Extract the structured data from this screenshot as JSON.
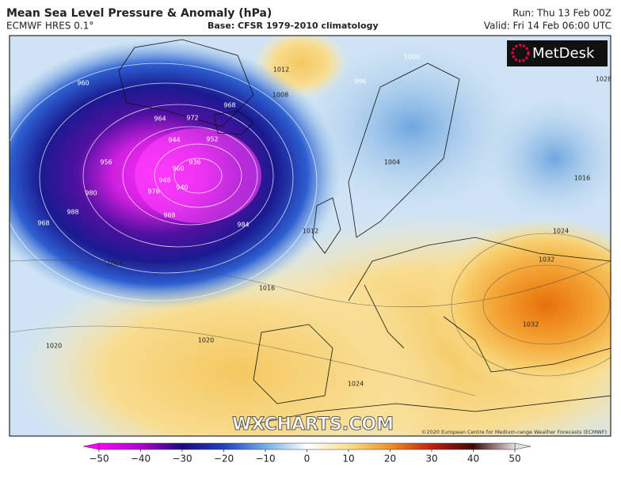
{
  "header": {
    "title": "Mean Sea Level Pressure & Anomaly (hPa)",
    "model": "ECMWF HRES 0.1°",
    "base": "Base: CFSR 1979-2010 climatology",
    "run": "Run: Thu 13 Feb 00Z",
    "valid": "Valid: Fri 14 Feb 06:00 UTC"
  },
  "map": {
    "logo": "MetDesk",
    "watermark": "WXCHARTS.COM",
    "credit": "©2020 European Centre for Medium-range Weather Forecasts (ECMWF)",
    "isobar_labels": [
      "960",
      "964",
      "972",
      "944",
      "936",
      "952",
      "960",
      "940",
      "948",
      "956",
      "968",
      "976",
      "968",
      "980",
      "984",
      "988",
      "968",
      "1004",
      "1012",
      "1016",
      "1020",
      "1020",
      "1024",
      "1024",
      "1032",
      "1032",
      "1012",
      "1008",
      "1000",
      "1016",
      "1028",
      "996",
      "1004"
    ]
  },
  "colorbar": {
    "range": [
      -50,
      50
    ],
    "ticks": [
      {
        "value": -50,
        "label": "−50"
      },
      {
        "value": -40,
        "label": "−40"
      },
      {
        "value": -30,
        "label": "−30"
      },
      {
        "value": -20,
        "label": "−20"
      },
      {
        "value": -10,
        "label": "−10"
      },
      0,
      10,
      20,
      30,
      40,
      50
    ]
  }
}
